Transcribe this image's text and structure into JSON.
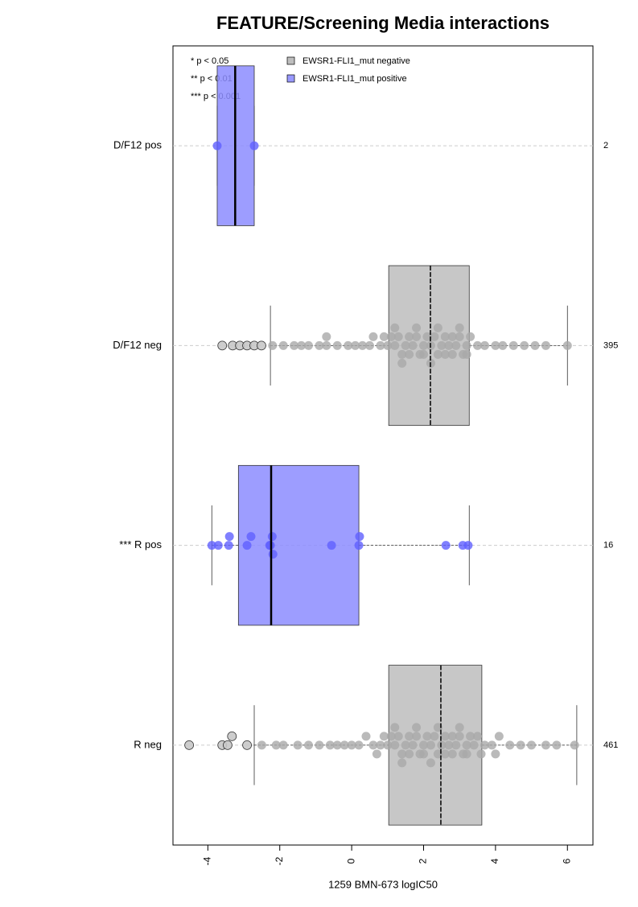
{
  "chart_data": {
    "type": "box",
    "title": "FEATURE/Screening Media interactions",
    "xlabel": "1259 BMN-673 logIC50",
    "annotations": [
      "* p < 0.05",
      "** p < 0.01",
      "*** p < 0.001"
    ],
    "legend": [
      {
        "name": "EWSR1-FLI1_mut negative",
        "color": "#bebebe"
      },
      {
        "name": "EWSR1-FLI1_mut positive",
        "color": "#9999ff"
      }
    ],
    "xlim": [
      -4.97,
      6.71
    ],
    "xticks": [
      -4,
      -2,
      0,
      2,
      4,
      6
    ],
    "boxes": [
      {
        "category": "D/F12 pos",
        "group": 1,
        "n": 2,
        "whisker_low": -3.74,
        "q1": -3.74,
        "median": -3.24,
        "q3": -2.71,
        "whisker_high": -2.71,
        "points": [
          -3.74,
          -2.71
        ],
        "outliers": []
      },
      {
        "category": "D/F12 neg",
        "group": 0,
        "n": 395,
        "whisker_low": -2.26,
        "q1": 1.03,
        "median": 2.19,
        "q3": 3.27,
        "whisker_high": 6.0,
        "points": [
          -2.2,
          -1.9,
          -1.6,
          -1.4,
          -1.2,
          -0.9,
          -0.7,
          -0.7,
          -0.4,
          -0.1,
          0.1,
          0.3,
          0.5,
          0.6,
          0.8,
          0.9,
          1.0,
          1.1,
          1.2,
          1.3,
          1.4,
          1.5,
          1.6,
          1.7,
          1.8,
          1.9,
          2.0,
          2.1,
          2.2,
          2.3,
          2.4,
          2.5,
          2.6,
          2.7,
          2.8,
          2.9,
          3.0,
          3.1,
          3.2,
          3.3,
          3.5,
          3.7,
          4.0,
          4.2,
          4.5,
          4.8,
          5.1,
          5.4,
          6.0,
          1.2,
          1.6,
          2.0,
          2.4,
          2.8,
          3.2,
          1.4,
          1.8,
          2.2,
          2.6,
          3.0
        ],
        "outliers": [
          -3.6,
          -3.31,
          -3.11,
          -2.91,
          -2.71,
          -2.51
        ]
      },
      {
        "category": "*** R pos",
        "group": 1,
        "n": 16,
        "whisker_low": -3.89,
        "q1": -3.15,
        "median": -2.24,
        "q3": 0.2,
        "whisker_high": 3.27,
        "points": [
          -3.89,
          -3.71,
          -3.42,
          -3.4,
          -2.91,
          -2.8,
          -2.28,
          -2.26,
          -2.21,
          -2.19,
          -0.56,
          0.2,
          0.22,
          2.62,
          3.09,
          3.24
        ],
        "outliers": []
      },
      {
        "category": "R neg",
        "group": 0,
        "n": 461,
        "whisker_low": -2.71,
        "q1": 1.03,
        "median": 2.48,
        "q3": 3.62,
        "whisker_high": 6.26,
        "points": [
          -2.5,
          -2.1,
          -1.9,
          -1.5,
          -1.2,
          -0.9,
          -0.6,
          -0.4,
          -0.2,
          0.0,
          0.2,
          0.4,
          0.6,
          0.8,
          0.9,
          1.0,
          1.1,
          1.2,
          1.3,
          1.4,
          1.5,
          1.6,
          1.7,
          1.8,
          1.9,
          2.0,
          2.1,
          2.2,
          2.3,
          2.4,
          2.5,
          2.6,
          2.7,
          2.8,
          2.9,
          3.0,
          3.1,
          3.2,
          3.3,
          3.4,
          3.5,
          3.7,
          3.9,
          4.1,
          4.4,
          4.7,
          5.0,
          5.4,
          5.7,
          6.2,
          1.2,
          1.6,
          2.0,
          2.4,
          2.8,
          3.2,
          3.6,
          1.4,
          1.8,
          2.2,
          2.6,
          3.0,
          0.7,
          4.0
        ],
        "outliers": [
          -4.52,
          -3.6,
          -3.45,
          -3.33,
          -2.91
        ]
      }
    ]
  }
}
